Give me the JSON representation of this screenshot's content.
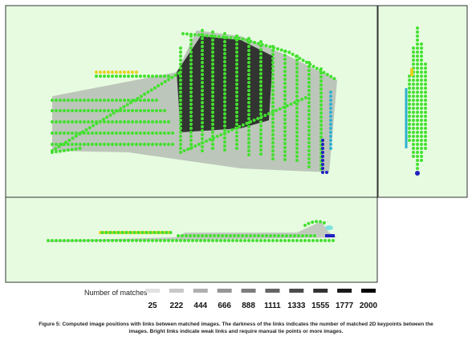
{
  "legend": {
    "title": "Number of matches",
    "values": [
      25,
      222,
      444,
      666,
      888,
      1111,
      1333,
      1555,
      1777,
      2000
    ]
  },
  "caption": {
    "lines": [
      "Figure 5: Computed image positions with links between matched images. The darkness of the links indicates the number of matched 2D keypoints between the",
      "images. Bright links indicate weak links and require manual tie points or more images."
    ]
  }
}
